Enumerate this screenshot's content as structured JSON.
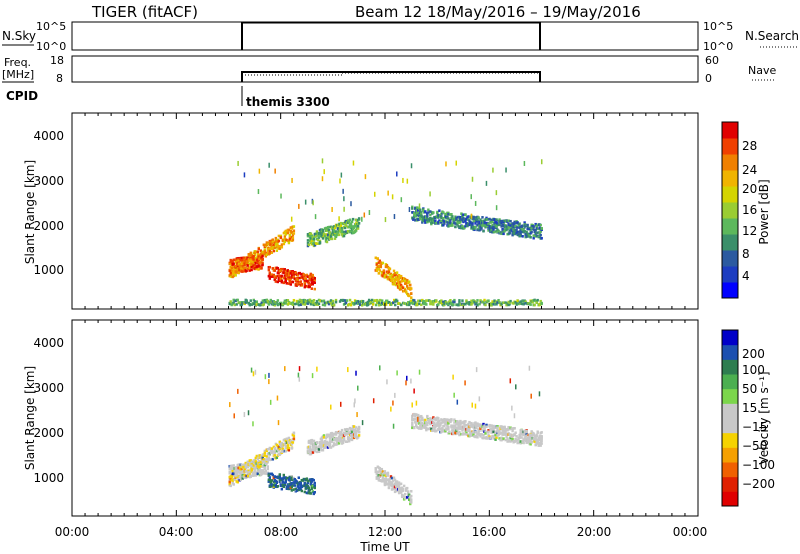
{
  "header": {
    "radar": "TIGER (fitACF)",
    "beam_date": "Beam 12 18/May/2016 – 19/May/2016"
  },
  "nsky_panel": {
    "label": "N.Sky",
    "ticks_left": [
      "10^5",
      "10^0"
    ],
    "ticks_right": [
      "10^5",
      "10^0"
    ],
    "right_label": "N.Search"
  },
  "freq_panel": {
    "label_line1": "Freq.",
    "label_line2": "[MHz]",
    "ticks_left": [
      "18",
      "8"
    ],
    "ticks_right": [
      "60",
      "0"
    ],
    "right_label": "Nave"
  },
  "cpid": {
    "label": "CPID",
    "mode_name": "themis 3300"
  },
  "x_axis": {
    "label": "Time UT",
    "ticks": [
      "00:00",
      "04:00",
      "08:00",
      "12:00",
      "16:00",
      "20:00",
      "00:00"
    ],
    "range_hours": [
      0,
      24
    ]
  },
  "chart_data": [
    {
      "type": "heatmap",
      "name": "power",
      "ylabel": "Slant Range [km]",
      "y_ticks": [
        "1000",
        "2000",
        "3000",
        "4000"
      ],
      "ylim_km": [
        180,
        4500
      ],
      "xlim_hours": [
        0,
        24
      ],
      "colorbar": {
        "label": "Power [dB]",
        "ticks": [
          "4",
          "8",
          "12",
          "16",
          "20",
          "24",
          "28"
        ],
        "colors": [
          "#0000ff",
          "#1c3cc0",
          "#2b5aa0",
          "#3a8f6a",
          "#5cb85c",
          "#9acd32",
          "#d4d400",
          "#f0b400",
          "#f08000",
          "#f04000",
          "#e00000"
        ]
      },
      "features": [
        {
          "t_start": 6.0,
          "t_end": 8.5,
          "range_start": 1000,
          "range_end": 1900,
          "level_db": 22
        },
        {
          "t_start": 6.0,
          "t_end": 7.3,
          "range_start": 1150,
          "range_end": 1250,
          "level_db": 26
        },
        {
          "t_start": 7.5,
          "t_end": 9.3,
          "range_start": 1000,
          "range_end": 800,
          "level_db": 28
        },
        {
          "t_start": 9.0,
          "t_end": 11.0,
          "range_start": 1700,
          "range_end": 2100,
          "level_db": 12
        },
        {
          "t_start": 11.6,
          "t_end": 13.0,
          "range_start": 1200,
          "range_end": 600,
          "level_db": 22
        },
        {
          "t_start": 13.0,
          "t_end": 18.0,
          "range_start": 2300,
          "range_end": 1900,
          "level_db": 8
        },
        {
          "t_start": 6.0,
          "t_end": 18.0,
          "range_start": 350,
          "range_end": 350,
          "level_db": 12
        }
      ]
    },
    {
      "type": "heatmap",
      "name": "velocity",
      "ylabel": "Slant Range [km]",
      "y_ticks": [
        "1000",
        "2000",
        "3000",
        "4000"
      ],
      "ylim_km": [
        180,
        4500
      ],
      "xlim_hours": [
        0,
        24
      ],
      "colorbar": {
        "label": "Velocity [m s⁻¹]",
        "ticks": [
          "200",
          "100",
          "50",
          "15",
          "−15",
          "−50",
          "−100",
          "−200"
        ],
        "colors": [
          "#0000c8",
          "#1c50b0",
          "#2e7d50",
          "#4caf50",
          "#7cd64b",
          "#c8c8c8",
          "#c8c8c8",
          "#f5d200",
          "#f5a000",
          "#f06000",
          "#e02000",
          "#e00000"
        ]
      },
      "features": [
        {
          "t_start": 6.0,
          "t_end": 7.5,
          "range_start": 1150,
          "range_end": 1300,
          "velocity": 0
        },
        {
          "t_start": 6.0,
          "t_end": 8.5,
          "range_start": 1000,
          "range_end": 1900,
          "velocity": -40
        },
        {
          "t_start": 7.5,
          "t_end": 9.3,
          "range_start": 1000,
          "range_end": 850,
          "velocity": 150
        },
        {
          "t_start": 9.0,
          "t_end": 11.0,
          "range_start": 1700,
          "range_end": 2100,
          "velocity": 0
        },
        {
          "t_start": 11.6,
          "t_end": 13.0,
          "range_start": 1200,
          "range_end": 600,
          "velocity": 0
        },
        {
          "t_start": 13.0,
          "t_end": 18.0,
          "range_start": 2300,
          "range_end": 1900,
          "velocity": 0
        }
      ]
    }
  ]
}
